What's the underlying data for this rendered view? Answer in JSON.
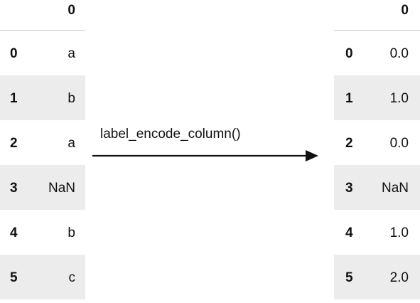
{
  "left_table": {
    "column_header": "0",
    "rows": [
      {
        "index": "0",
        "value": "a"
      },
      {
        "index": "1",
        "value": "b"
      },
      {
        "index": "2",
        "value": "a"
      },
      {
        "index": "3",
        "value": "NaN"
      },
      {
        "index": "4",
        "value": "b"
      },
      {
        "index": "5",
        "value": "c"
      }
    ]
  },
  "transform": {
    "label": "label_encode_column()"
  },
  "right_table": {
    "column_header": "0",
    "rows": [
      {
        "index": "0",
        "value": "0.0"
      },
      {
        "index": "1",
        "value": "1.0"
      },
      {
        "index": "2",
        "value": "0.0"
      },
      {
        "index": "3",
        "value": "NaN"
      },
      {
        "index": "4",
        "value": "1.0"
      },
      {
        "index": "5",
        "value": "2.0"
      }
    ]
  },
  "colors": {
    "stripe": "#ececec",
    "text": "#111111",
    "header_rule": "#cfcfcf"
  }
}
